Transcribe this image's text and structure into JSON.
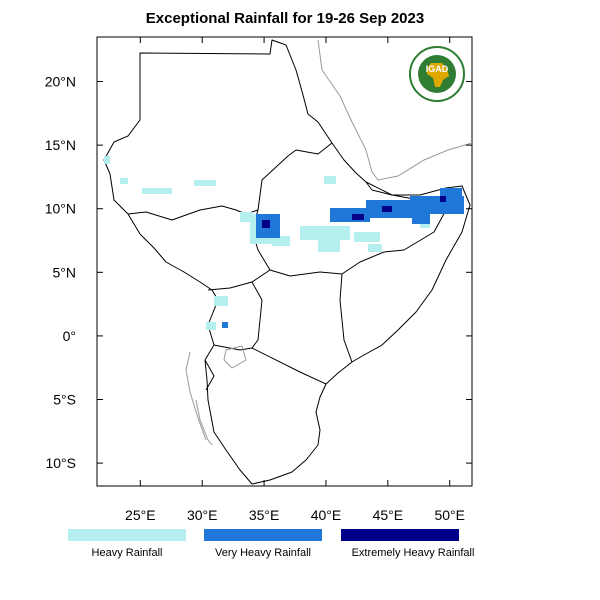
{
  "map": {
    "title": "Exceptional Rainfall for 19-26 Sep 2023",
    "x_ticks": [
      {
        "value": 25,
        "label": "25°E"
      },
      {
        "value": 30,
        "label": "30°E"
      },
      {
        "value": 35,
        "label": "35°E"
      },
      {
        "value": 40,
        "label": "40°E"
      },
      {
        "value": 45,
        "label": "45°E"
      },
      {
        "value": 50,
        "label": "50°E"
      }
    ],
    "y_ticks": [
      {
        "value": 20,
        "label": "20°N"
      },
      {
        "value": 15,
        "label": "15°N"
      },
      {
        "value": 10,
        "label": "10°N"
      },
      {
        "value": 5,
        "label": "5°N"
      },
      {
        "value": 0,
        "label": "0°"
      },
      {
        "value": -5,
        "label": "5°S"
      },
      {
        "value": -10,
        "label": "10°S"
      }
    ],
    "lon_range": [
      21.5,
      51.8
    ],
    "lat_range": [
      -11.8,
      23.5
    ],
    "logo_text": "IGAD",
    "legend": [
      {
        "label": "Heavy Rainfall",
        "color": "#b4eeee"
      },
      {
        "label": "Very Heavy Rainfall",
        "color": "#1f78d8"
      },
      {
        "label": "Extremely Heavy Rainfall",
        "color": "#00008b"
      }
    ],
    "colors": {
      "border": "#000000",
      "coast_outside": "#999999",
      "logo_green": "#2e7d32",
      "logo_gold": "#e0a800"
    }
  }
}
